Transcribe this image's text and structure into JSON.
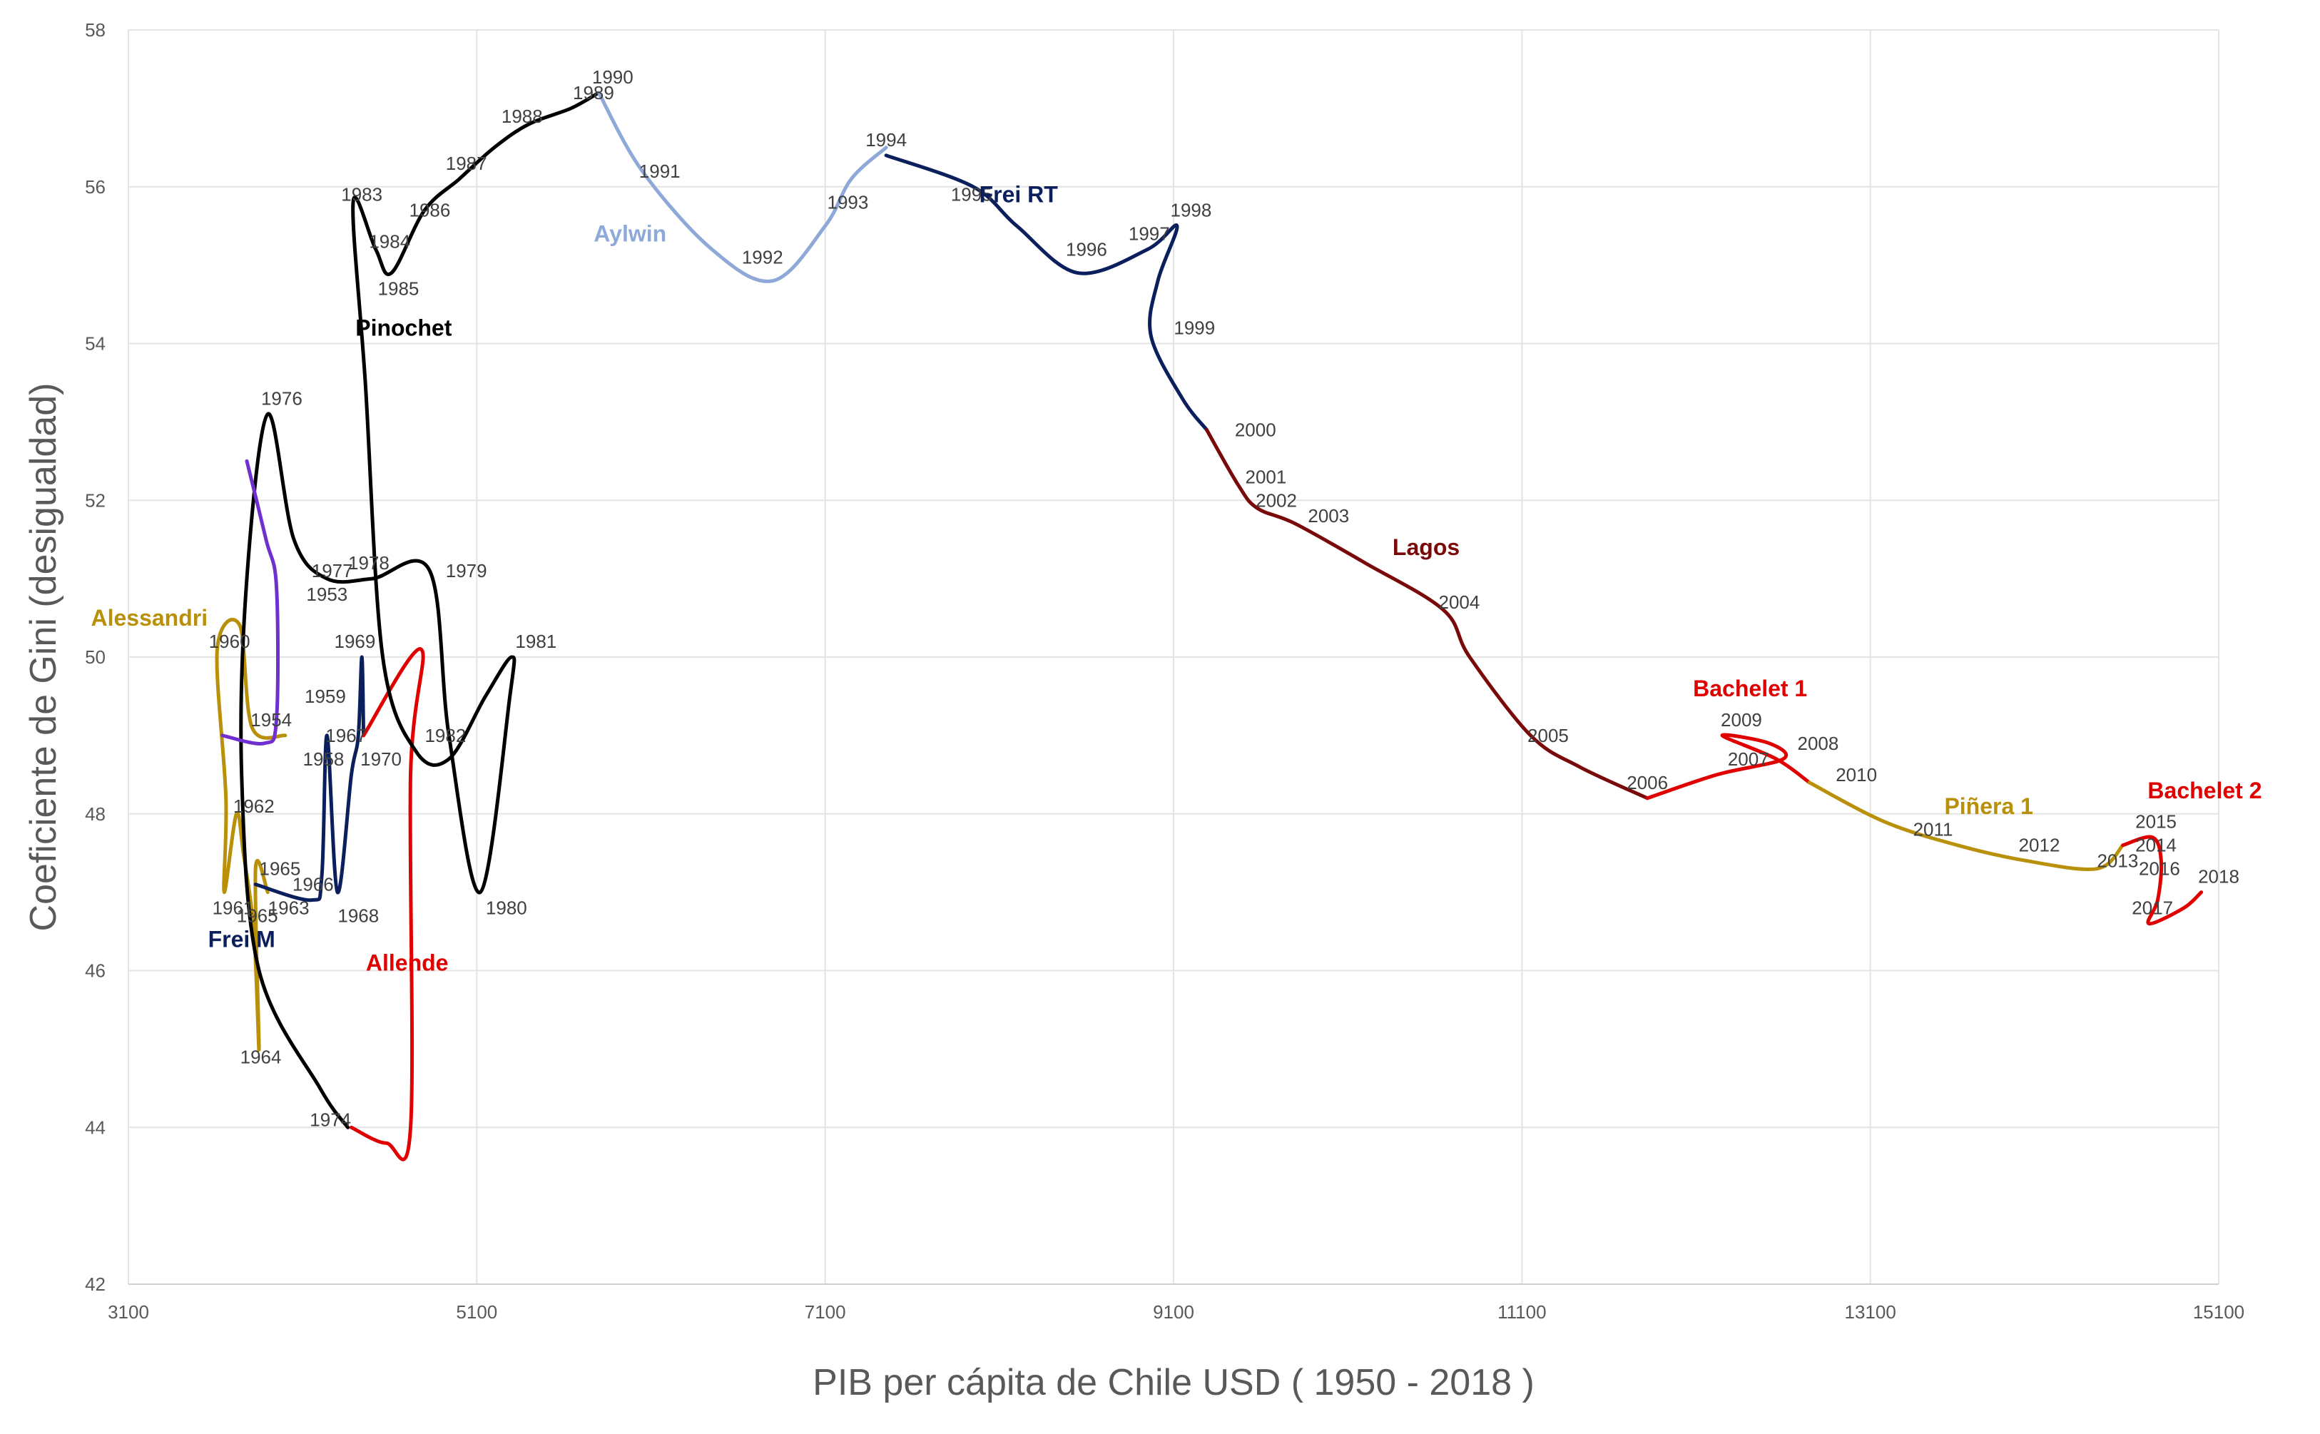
{
  "chart_data": {
    "type": "line",
    "title": "",
    "xlabel": "PIB per cápita de Chile USD ( 1950 - 2018 )",
    "ylabel": "Coeficiente de Gini (desigualdad)",
    "xlim": [
      3100,
      15100
    ],
    "ylim": [
      42,
      58
    ],
    "xticks": [
      3100,
      5100,
      7100,
      9100,
      11100,
      13100,
      15100
    ],
    "yticks": [
      42,
      44,
      46,
      48,
      50,
      52,
      54,
      56,
      58
    ],
    "grid": true,
    "colors": {
      "black": "#000000",
      "red": "#e00000",
      "gold": "#b8900a",
      "navy": "#0a1f5c",
      "lightblue": "#8ea9d8",
      "darkred": "#7a0a0a",
      "purple": "#7030d0"
    },
    "series": [
      {
        "name": "Alessandri",
        "color": "#b8900a",
        "points": [
          [
            4000,
            49
          ],
          [
            3810,
            49.1
          ],
          [
            3740,
            50.4
          ],
          [
            3610,
            50.1
          ],
          [
            3660,
            48.2
          ],
          [
            3650,
            47.0
          ],
          [
            3720,
            48.0
          ],
          [
            3760,
            47.5
          ],
          [
            3820,
            46.5
          ],
          [
            3850,
            45.0
          ],
          [
            3830,
            47.3
          ],
          [
            3900,
            47.0
          ]
        ]
      },
      {
        "name": "Frei M",
        "color": "#0a1f5c",
        "points": [
          [
            3830,
            47.1
          ],
          [
            4150,
            46.9
          ],
          [
            4210,
            47.2
          ],
          [
            4240,
            49.0
          ],
          [
            4300,
            47.0
          ],
          [
            4380,
            48.5
          ],
          [
            4420,
            49.0
          ],
          [
            4440,
            50.0
          ],
          [
            4450,
            49.0
          ]
        ]
      },
      {
        "name": "Allende",
        "color": "#e00000",
        "points": [
          [
            4450,
            49.0
          ],
          [
            4780,
            50.1
          ],
          [
            4720,
            48.5
          ],
          [
            4720,
            44.0
          ],
          [
            4580,
            43.8
          ],
          [
            4380,
            44.0
          ]
        ]
      },
      {
        "name": "Pinochet",
        "color": "#000000",
        "points": [
          [
            4360,
            44.0
          ],
          [
            4200,
            44.5
          ],
          [
            3850,
            46.0
          ],
          [
            3750,
            48.5
          ],
          [
            3780,
            51.0
          ],
          [
            3900,
            53.1
          ],
          [
            4050,
            51.5
          ],
          [
            4240,
            51.0
          ],
          [
            4500,
            51.0
          ],
          [
            4830,
            51.1
          ],
          [
            4940,
            49.0
          ],
          [
            5120,
            47.0
          ],
          [
            5290,
            49.5
          ],
          [
            5300,
            50.0
          ],
          [
            5150,
            49.5
          ],
          [
            4940,
            48.7
          ],
          [
            4750,
            48.8
          ],
          [
            4560,
            50.0
          ],
          [
            4460,
            53.5
          ],
          [
            4390,
            55.8
          ],
          [
            4520,
            55.2
          ],
          [
            4610,
            54.9
          ],
          [
            4800,
            55.7
          ],
          [
            5000,
            56.1
          ],
          [
            5200,
            56.5
          ],
          [
            5400,
            56.8
          ],
          [
            5640,
            57.0
          ],
          [
            5800,
            57.2
          ]
        ]
      },
      {
        "name": "Aylwin",
        "color": "#8ea9d8",
        "points": [
          [
            5800,
            57.2
          ],
          [
            6050,
            56.2
          ],
          [
            6450,
            55.2
          ],
          [
            6800,
            54.8
          ],
          [
            7100,
            55.5
          ],
          [
            7250,
            56.1
          ],
          [
            7450,
            56.5
          ]
        ]
      },
      {
        "name": "Frei RT",
        "color": "#0a1f5c",
        "points": [
          [
            7450,
            56.4
          ],
          [
            7950,
            56.0
          ],
          [
            8200,
            55.5
          ],
          [
            8550,
            54.9
          ],
          [
            8950,
            55.2
          ],
          [
            9120,
            55.5
          ],
          [
            9010,
            54.8
          ],
          [
            8970,
            54.1
          ],
          [
            9150,
            53.3
          ],
          [
            9290,
            52.9
          ]
        ]
      },
      {
        "name": "Lagos",
        "color": "#7a0a0a",
        "points": [
          [
            9290,
            52.9
          ],
          [
            9470,
            52.2
          ],
          [
            9580,
            51.9
          ],
          [
            9800,
            51.7
          ],
          [
            10200,
            51.2
          ],
          [
            10650,
            50.6
          ],
          [
            10800,
            50.0
          ],
          [
            11150,
            49.0
          ],
          [
            11430,
            48.6
          ],
          [
            11820,
            48.2
          ]
        ]
      },
      {
        "name": "Bachelet 1",
        "color": "#e00000",
        "points": [
          [
            11820,
            48.2
          ],
          [
            12220,
            48.5
          ],
          [
            12600,
            48.7
          ],
          [
            12520,
            48.9
          ],
          [
            12250,
            49.0
          ],
          [
            12560,
            48.7
          ],
          [
            12750,
            48.4
          ]
        ]
      },
      {
        "name": "Piñera 1",
        "color": "#b8900a",
        "points": [
          [
            12750,
            48.4
          ],
          [
            13180,
            47.9
          ],
          [
            13600,
            47.6
          ],
          [
            14000,
            47.4
          ],
          [
            14400,
            47.3
          ],
          [
            14550,
            47.6
          ]
        ]
      },
      {
        "name": "Bachelet 2",
        "color": "#e00000",
        "points": [
          [
            14550,
            47.6
          ],
          [
            14720,
            47.7
          ],
          [
            14770,
            47.4
          ],
          [
            14750,
            46.9
          ],
          [
            14700,
            46.6
          ],
          [
            14900,
            46.8
          ],
          [
            15000,
            47.0
          ]
        ]
      },
      {
        "name": "",
        "color": "#7030d0",
        "points": [
          [
            3780,
            52.5
          ],
          [
            3890,
            51.5
          ],
          [
            3950,
            50.9
          ],
          [
            3950,
            49.2
          ],
          [
            3880,
            48.9
          ],
          [
            3640,
            49.0
          ]
        ]
      }
    ],
    "era_labels": [
      {
        "text": "Alessandri",
        "x": 3220,
        "y": 50.5,
        "color": "#b8900a"
      },
      {
        "text": "Frei M",
        "x": 3750,
        "y": 46.4,
        "color": "#0a1f5c"
      },
      {
        "text": "Allende",
        "x": 4700,
        "y": 46.1,
        "color": "#e00000"
      },
      {
        "text": "Pinochet",
        "x": 4680,
        "y": 54.2,
        "color": "#000000"
      },
      {
        "text": "Aylwin",
        "x": 5980,
        "y": 55.4,
        "color": "#8ea9d8"
      },
      {
        "text": "Frei RT",
        "x": 8210,
        "y": 55.9,
        "color": "#0a1f5c"
      },
      {
        "text": "Lagos",
        "x": 10550,
        "y": 51.4,
        "color": "#7a0a0a"
      },
      {
        "text": "Bachelet 1",
        "x": 12410,
        "y": 49.6,
        "color": "#e00000"
      },
      {
        "text": "Piñera 1",
        "x": 13780,
        "y": 48.1,
        "color": "#b8900a"
      },
      {
        "text": "Bachelet 2",
        "x": 15020,
        "y": 48.3,
        "color": "#e00000"
      }
    ],
    "year_labels": [
      {
        "text": "1953",
        "x": 4240,
        "y": 50.8
      },
      {
        "text": "1954",
        "x": 3920,
        "y": 49.2
      },
      {
        "text": "1958",
        "x": 4220,
        "y": 48.7
      },
      {
        "text": "1959",
        "x": 4230,
        "y": 49.5
      },
      {
        "text": "1960",
        "x": 3680,
        "y": 50.2
      },
      {
        "text": "1961",
        "x": 3700,
        "y": 46.8
      },
      {
        "text": "1962",
        "x": 3820,
        "y": 48.1
      },
      {
        "text": "1963",
        "x": 4020,
        "y": 46.8
      },
      {
        "text": "1964",
        "x": 3860,
        "y": 44.9
      },
      {
        "text": "1965",
        "x": 3840,
        "y": 46.7
      },
      {
        "text": "1965",
        "x": 3970,
        "y": 47.3
      },
      {
        "text": "1966",
        "x": 4160,
        "y": 47.1
      },
      {
        "text": "1967",
        "x": 4350,
        "y": 49.0
      },
      {
        "text": "1968",
        "x": 4420,
        "y": 46.7
      },
      {
        "text": "1969",
        "x": 4400,
        "y": 50.2
      },
      {
        "text": "1970",
        "x": 4550,
        "y": 48.7
      },
      {
        "text": "1974",
        "x": 4260,
        "y": 44.1
      },
      {
        "text": "1976",
        "x": 3980,
        "y": 53.3
      },
      {
        "text": "1977",
        "x": 4270,
        "y": 51.1
      },
      {
        "text": "1978",
        "x": 4480,
        "y": 51.2
      },
      {
        "text": "1979",
        "x": 5040,
        "y": 51.1
      },
      {
        "text": "1980",
        "x": 5270,
        "y": 46.8
      },
      {
        "text": "1981",
        "x": 5440,
        "y": 50.2
      },
      {
        "text": "1982",
        "x": 4920,
        "y": 49.0
      },
      {
        "text": "1983",
        "x": 4440,
        "y": 55.9
      },
      {
        "text": "1984",
        "x": 4600,
        "y": 55.3
      },
      {
        "text": "1985",
        "x": 4650,
        "y": 54.7
      },
      {
        "text": "1986",
        "x": 4830,
        "y": 55.7
      },
      {
        "text": "1987",
        "x": 5040,
        "y": 56.3
      },
      {
        "text": "1988",
        "x": 5360,
        "y": 56.9
      },
      {
        "text": "1989",
        "x": 5770,
        "y": 57.2
      },
      {
        "text": "1990",
        "x": 5880,
        "y": 57.4
      },
      {
        "text": "1991",
        "x": 6150,
        "y": 56.2
      },
      {
        "text": "1992",
        "x": 6740,
        "y": 55.1
      },
      {
        "text": "1993",
        "x": 7230,
        "y": 55.8
      },
      {
        "text": "1994",
        "x": 7450,
        "y": 56.6
      },
      {
        "text": "1995",
        "x": 7940,
        "y": 55.9
      },
      {
        "text": "1996",
        "x": 8600,
        "y": 55.2
      },
      {
        "text": "1997",
        "x": 8960,
        "y": 55.4
      },
      {
        "text": "1998",
        "x": 9200,
        "y": 55.7
      },
      {
        "text": "1999",
        "x": 9220,
        "y": 54.2
      },
      {
        "text": "2000",
        "x": 9570,
        "y": 52.9
      },
      {
        "text": "2001",
        "x": 9630,
        "y": 52.3
      },
      {
        "text": "2002",
        "x": 9690,
        "y": 52.0
      },
      {
        "text": "2003",
        "x": 9990,
        "y": 51.8
      },
      {
        "text": "2004",
        "x": 10740,
        "y": 50.7
      },
      {
        "text": "2005",
        "x": 11250,
        "y": 49.0
      },
      {
        "text": "2006",
        "x": 11820,
        "y": 48.4
      },
      {
        "text": "2007",
        "x": 12400,
        "y": 48.7
      },
      {
        "text": "2008",
        "x": 12800,
        "y": 48.9
      },
      {
        "text": "2009",
        "x": 12360,
        "y": 49.2
      },
      {
        "text": "2010",
        "x": 13020,
        "y": 48.5
      },
      {
        "text": "2011",
        "x": 13460,
        "y": 47.8
      },
      {
        "text": "2012",
        "x": 14070,
        "y": 47.6
      },
      {
        "text": "2013",
        "x": 14520,
        "y": 47.4
      },
      {
        "text": "2014",
        "x": 14740,
        "y": 47.6
      },
      {
        "text": "2015",
        "x": 14740,
        "y": 47.9
      },
      {
        "text": "2016",
        "x": 14760,
        "y": 47.3
      },
      {
        "text": "2017",
        "x": 14720,
        "y": 46.8
      },
      {
        "text": "2018",
        "x": 15100,
        "y": 47.2
      }
    ]
  }
}
